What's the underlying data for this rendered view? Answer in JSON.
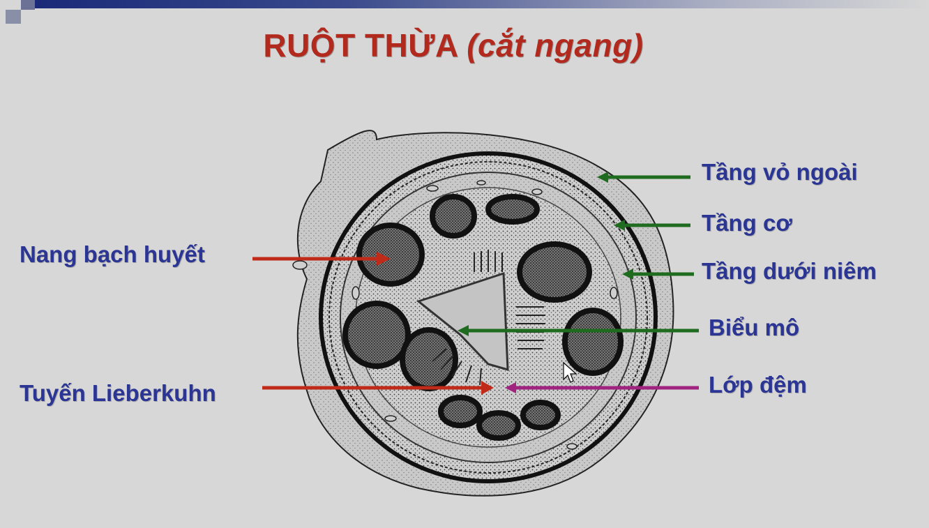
{
  "title": {
    "main": "RUỘT THỪA",
    "sub": "(cắt ngang)"
  },
  "labels": {
    "left": [
      {
        "text": "Nang bạch huyết",
        "color": "#c02a18"
      },
      {
        "text": "Tuyến Lieberkuhn",
        "color": "#c02a18"
      }
    ],
    "right": [
      {
        "text": "Tầng vỏ ngoài",
        "color": "#1f6b1f"
      },
      {
        "text": "Tầng cơ",
        "color": "#1f6b1f"
      },
      {
        "text": "Tầng dưới niêm",
        "color": "#1f6b1f"
      },
      {
        "text": "Biểu mô",
        "color": "#1f6b1f"
      },
      {
        "text": "Lớp đệm",
        "color": "#a0237f"
      }
    ]
  },
  "colors": {
    "title": "#b22a1e",
    "label_text": "#2b3593",
    "background": "#d7d7d7"
  }
}
